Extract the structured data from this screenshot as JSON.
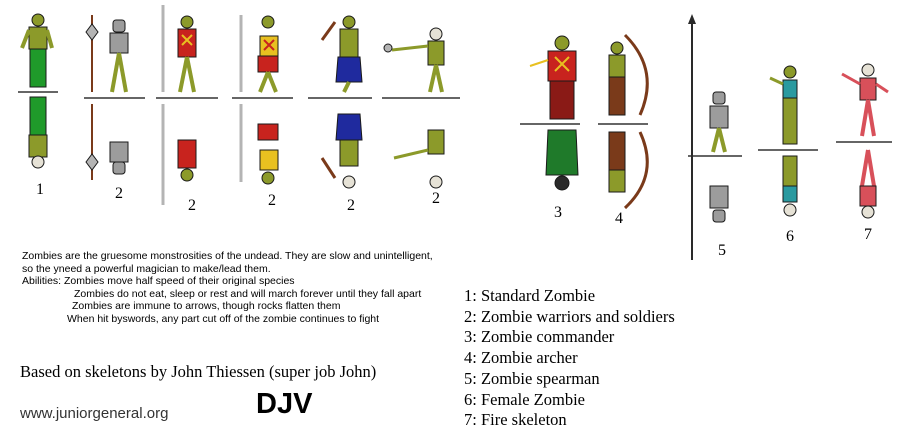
{
  "figure_numbers": [
    "1",
    "2",
    "2",
    "2",
    "2",
    "2",
    "3",
    "4",
    "5",
    "6",
    "7"
  ],
  "description": {
    "line1": "Zombies are the gruesome monstrosities of the undead. They are slow and unintelligent,",
    "line2": "so the yneed a powerful magician to make/lead them.",
    "line3": "Abilities: Zombies move half speed of their original species",
    "line4": "Zombies do not eat, sleep or rest and will march forever until they fall apart",
    "line5": "Zombies are immune to arrows, though rocks flatten them",
    "line6": "When hit byswords, any part cut off of the zombie continues to fight"
  },
  "legend": [
    "1: Standard Zombie",
    "2: Zombie warriors and soldiers",
    "3: Zombie commander",
    "4: Zombie archer",
    "5: Zombie spearman",
    "6: Female Zombie",
    "7: Fire skeleton"
  ],
  "credit": "Based on skeletons by John Thiessen (super job John)",
  "url": "www.juniorgeneral.org",
  "signature": "DJV",
  "colors": {
    "zombie_skin": "#8c9a2a",
    "outline": "#1a1a1a",
    "green_cloth": "#1f9a2a",
    "red_cloth": "#c8231e",
    "blue_cloth": "#1f2a9e",
    "bone": "#e6e2d6",
    "armor": "#9c9c9c",
    "weapon_steel": "#b4b4b4",
    "archer_brown": "#7a3a1a",
    "teal_cloth": "#2a9aa0",
    "fire_red": "#d8505a"
  }
}
